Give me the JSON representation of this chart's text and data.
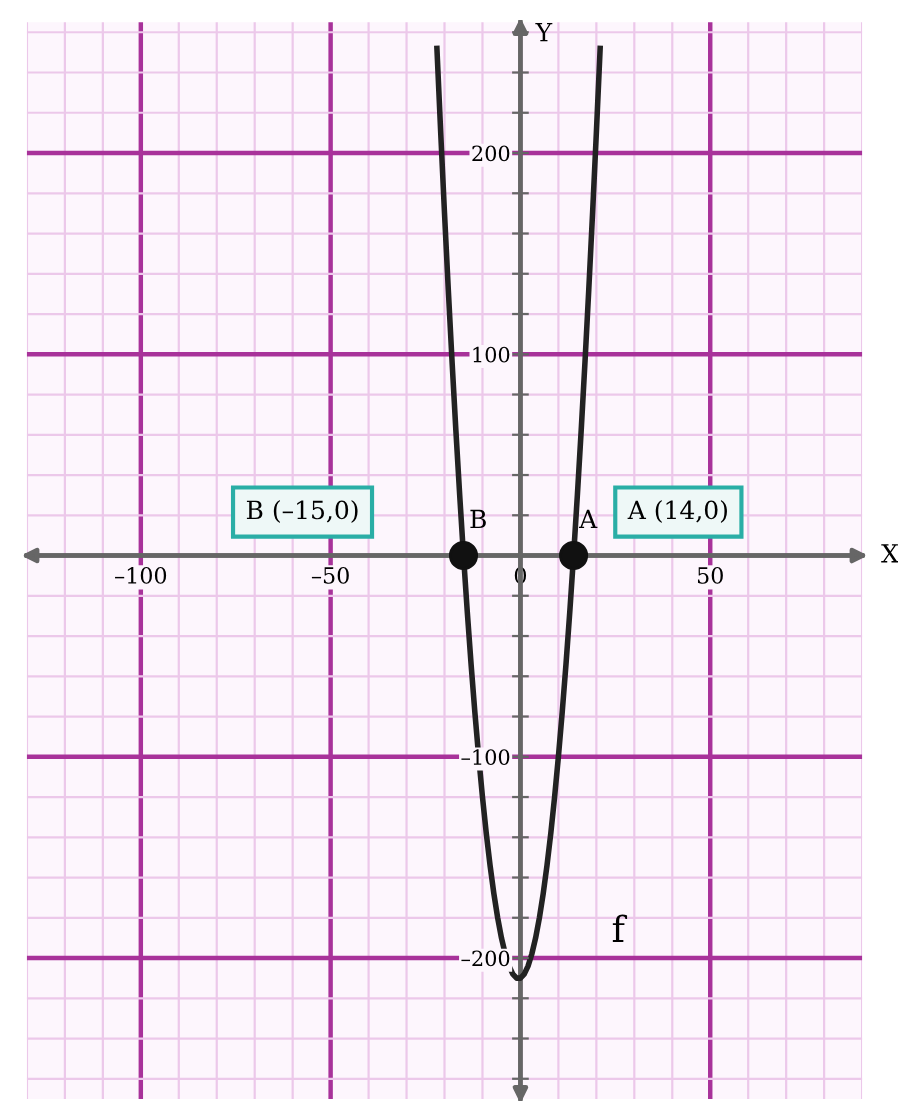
{
  "chart_data": {
    "type": "line",
    "xlabel": "X",
    "ylabel": "Y",
    "xlim": [
      -130,
      90
    ],
    "ylim": [
      -270,
      265
    ],
    "xticks": [
      {
        "value": -130,
        "label": null
      },
      {
        "value": -120,
        "label": null
      },
      {
        "value": -110,
        "label": null
      },
      {
        "value": -100,
        "label": "–100"
      },
      {
        "value": -90,
        "label": null
      },
      {
        "value": -80,
        "label": null
      },
      {
        "value": -70,
        "label": null
      },
      {
        "value": -60,
        "label": null
      },
      {
        "value": -50,
        "label": "–50"
      },
      {
        "value": -40,
        "label": null
      },
      {
        "value": -30,
        "label": null
      },
      {
        "value": -20,
        "label": null
      },
      {
        "value": -10,
        "label": null
      },
      {
        "value": 0,
        "label": "0"
      },
      {
        "value": 10,
        "label": null
      },
      {
        "value": 20,
        "label": null
      },
      {
        "value": 30,
        "label": null
      },
      {
        "value": 40,
        "label": null
      },
      {
        "value": 50,
        "label": "50"
      },
      {
        "value": 60,
        "label": null
      },
      {
        "value": 70,
        "label": null
      },
      {
        "value": 80,
        "label": null
      },
      {
        "value": 90,
        "label": null
      }
    ],
    "yticks": [
      {
        "value": -260,
        "label": null
      },
      {
        "value": -240,
        "label": null
      },
      {
        "value": -220,
        "label": null
      },
      {
        "value": -200,
        "label": "–200"
      },
      {
        "value": -180,
        "label": null
      },
      {
        "value": -160,
        "label": null
      },
      {
        "value": -140,
        "label": null
      },
      {
        "value": -120,
        "label": null
      },
      {
        "value": -100,
        "label": "–100"
      },
      {
        "value": -80,
        "label": null
      },
      {
        "value": -60,
        "label": null
      },
      {
        "value": -40,
        "label": null
      },
      {
        "value": -20,
        "label": null
      },
      {
        "value": 20,
        "label": null
      },
      {
        "value": 40,
        "label": null
      },
      {
        "value": 60,
        "label": null
      },
      {
        "value": 80,
        "label": null
      },
      {
        "value": 100,
        "label": "100"
      },
      {
        "value": 120,
        "label": null
      },
      {
        "value": 140,
        "label": null
      },
      {
        "value": 160,
        "label": null
      },
      {
        "value": 180,
        "label": null
      },
      {
        "value": 200,
        "label": "200"
      },
      {
        "value": 220,
        "label": null
      },
      {
        "value": 240,
        "label": null
      },
      {
        "value": 260,
        "label": null
      }
    ],
    "grid": true,
    "series": [
      {
        "color": "#222222",
        "marker": "none",
        "line_style": "solid",
        "x": [
          -22,
          -21,
          -20,
          -19,
          -18,
          -17,
          -16,
          -15,
          -14,
          -13,
          -12,
          -11,
          -10,
          -9,
          -8,
          -7,
          -6,
          -5,
          -4,
          -3,
          -2,
          -1,
          0,
          1,
          2,
          3,
          4,
          5,
          6,
          7,
          8,
          9,
          10,
          11,
          12,
          13,
          14,
          15,
          16,
          17,
          18,
          19,
          20,
          21
        ],
        "values": [
          252,
          210,
          170,
          132,
          96,
          62,
          30,
          0,
          -28,
          -54,
          -78,
          -100,
          -120,
          -138,
          -154,
          -168,
          -180,
          -190,
          -198,
          -204,
          -208,
          -210,
          -210,
          -208,
          -204,
          -198,
          -190,
          -180,
          -168,
          -154,
          -138,
          -120,
          -100,
          -78,
          -54,
          -28,
          0,
          30,
          62,
          96,
          132,
          170,
          210,
          252
        ]
      },
      {
        "type": "scatter",
        "color": "#111111",
        "marker": "circle",
        "x": [
          -15,
          14
        ],
        "values": [
          0,
          0
        ]
      }
    ],
    "annotations": [
      {
        "text": "B",
        "x": -15,
        "y": 0
      },
      {
        "text": "A",
        "x": 14,
        "y": 0
      },
      "B (–15,0)",
      "A (14,0)",
      "f"
    ]
  }
}
